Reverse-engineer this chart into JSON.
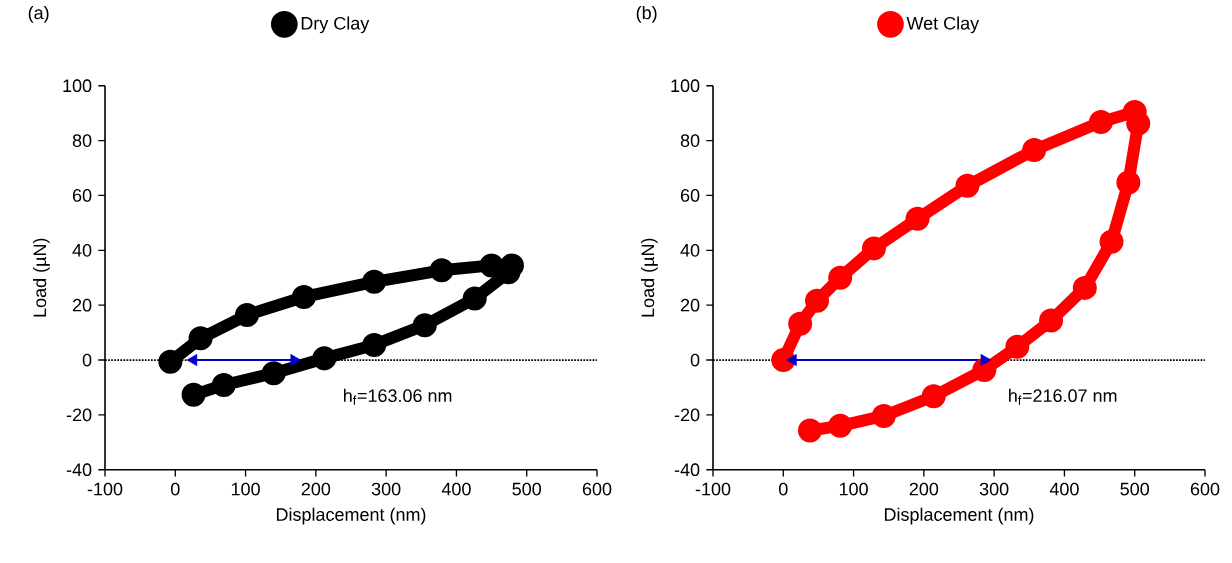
{
  "chart_data": [
    {
      "type": "line",
      "title": "(a)",
      "xlabel": "Displacement (nm)",
      "ylabel": "Load (µN)",
      "series": [
        {
          "name": "Dry Clay",
          "color": "#000000",
          "marker": "circle",
          "x": [
            -7,
            36,
            102,
            183,
            283,
            379,
            450,
            479,
            474,
            426,
            355,
            283,
            212,
            140,
            69,
            26
          ],
          "values": [
            -0.6,
            7.9,
            16.4,
            23,
            28.5,
            32.7,
            34.5,
            34.5,
            32,
            22.4,
            12.7,
            5.5,
            0.6,
            -4.8,
            -9.1,
            -12.7
          ]
        },
        {
          "color": "#0000cc",
          "marker": "triangle",
          "x": [
            26,
            169
          ],
          "values": [
            0,
            0
          ]
        }
      ],
      "xlim": [
        -100,
        600
      ],
      "xticks": [
        -100,
        0,
        100,
        200,
        300,
        400,
        500,
        600
      ],
      "ylim": [
        -40,
        100
      ],
      "yticks": [
        -40,
        -20,
        0,
        20,
        40,
        60,
        80,
        100
      ],
      "ref_lines": [
        {
          "axis": "y",
          "value": 0,
          "color": "#000000",
          "line_style": "dotted"
        }
      ],
      "annotations": [
        "h$_{f}$=163.06 nm"
      ],
      "grid": false,
      "legend": "top"
    },
    {
      "type": "line",
      "title": "(b)",
      "xlabel": "Displacement (nm)",
      "ylabel": "Load (µN)",
      "series": [
        {
          "name": "Wet Clay",
          "color": "#ff0000",
          "marker": "circle",
          "x": [
            0,
            24,
            48,
            81,
            129,
            191,
            262,
            357,
            452,
            500,
            505,
            491,
            467,
            429,
            381,
            333,
            286,
            214,
            143,
            81,
            38
          ],
          "values": [
            0,
            13.2,
            21.6,
            30,
            40.7,
            51.5,
            63.5,
            76.6,
            86.8,
            90.4,
            86.2,
            64.7,
            43.1,
            26.3,
            14.4,
            4.8,
            -3.6,
            -13.2,
            -20.4,
            -24,
            -25.7
          ]
        },
        {
          "color": "#0000cc",
          "marker": "triangle",
          "x": [
            14,
            286
          ],
          "values": [
            0,
            0
          ]
        }
      ],
      "xlim": [
        -100,
        600
      ],
      "xticks": [
        -100,
        0,
        100,
        200,
        300,
        400,
        500,
        600
      ],
      "ylim": [
        -40,
        100
      ],
      "yticks": [
        -40,
        -20,
        0,
        20,
        40,
        60,
        80,
        100
      ],
      "ref_lines": [
        {
          "axis": "y",
          "value": 0,
          "color": "#000000",
          "line_style": "dotted"
        }
      ],
      "annotations": [
        "h$_{f}$=216.07 nm"
      ],
      "grid": false,
      "legend": "top"
    }
  ]
}
